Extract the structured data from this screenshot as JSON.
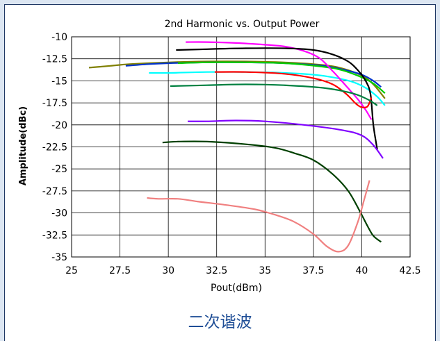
{
  "caption": "二次谐波",
  "colors": {
    "background": "#dce6f2",
    "border": "#1f3864",
    "caption": "#1f4e96"
  },
  "chart_data": {
    "type": "line",
    "title": "2nd Harmonic vs. Output Power",
    "xlabel": "Pout(dBm)",
    "ylabel": "Amplitude(dBc)",
    "xlim": [
      25,
      42.5
    ],
    "ylim": [
      -35,
      -10
    ],
    "xticks": [
      25,
      27.5,
      30,
      32.5,
      35,
      37.5,
      40,
      42.5
    ],
    "xtick_labels": [
      "25",
      "27.5",
      "30",
      "32.5",
      "35",
      "37.5",
      "40",
      "42.5"
    ],
    "yticks": [
      -10,
      -12.5,
      -15,
      -17.5,
      -20,
      -22.5,
      -25,
      -27.5,
      -30,
      -32.5,
      -35
    ],
    "ytick_labels": [
      "-10",
      "-12.5",
      "-15",
      "-17.5",
      "-20",
      "-22.5",
      "-25",
      "-27.5",
      "-30",
      "-32.5",
      "-35"
    ],
    "grid": true,
    "legend": "none",
    "series": [
      {
        "color": "#808000",
        "x": [
          25.9,
          27,
          28,
          30,
          32,
          34,
          36,
          38,
          39,
          40,
          40.6,
          41.2
        ],
        "y": [
          -13.5,
          -13.3,
          -13.1,
          -12.9,
          -12.8,
          -12.8,
          -12.9,
          -13.2,
          -13.6,
          -14.4,
          -15.4,
          -17.0
        ]
      },
      {
        "color": "#0033cc",
        "x": [
          27.8,
          29,
          30,
          32,
          34,
          36,
          38,
          39,
          40,
          40.6,
          41.0
        ],
        "y": [
          -13.3,
          -13.1,
          -13.0,
          -12.9,
          -12.9,
          -13.0,
          -13.3,
          -13.7,
          -14.3,
          -15.0,
          -15.7
        ]
      },
      {
        "color": "#00ffff",
        "x": [
          29.0,
          30,
          32,
          34,
          36,
          37.5,
          38.5,
          39.5,
          40.2,
          40.8,
          41.2
        ],
        "y": [
          -14.1,
          -14.1,
          -14.0,
          -14.0,
          -14.1,
          -14.3,
          -14.6,
          -15.1,
          -15.8,
          -16.8,
          -17.8
        ]
      },
      {
        "color": "#00cc00",
        "x": [
          30.5,
          32,
          34,
          36,
          38,
          39,
          40,
          40.6,
          41.2
        ],
        "y": [
          -13.0,
          -12.9,
          -12.9,
          -13.0,
          -13.4,
          -13.8,
          -14.6,
          -15.3,
          -16.4
        ]
      },
      {
        "color": "#ff00ff",
        "x": [
          30.9,
          32,
          33.5,
          35,
          36,
          37,
          37.8,
          38.5,
          39.2,
          39.8,
          40.2,
          40.5
        ],
        "y": [
          -10.6,
          -10.6,
          -10.7,
          -10.9,
          -11.1,
          -11.6,
          -12.4,
          -13.9,
          -15.6,
          -17.1,
          -18.3,
          -19.4
        ]
      },
      {
        "color": "#000000",
        "x": [
          30.4,
          32,
          34,
          36,
          37.5,
          38.5,
          39.3,
          39.8,
          40.2,
          40.45,
          40.6,
          40.8
        ],
        "y": [
          -11.5,
          -11.4,
          -11.3,
          -11.3,
          -11.5,
          -12.0,
          -12.8,
          -13.8,
          -15.0,
          -16.5,
          -20.0,
          -22.8
        ]
      },
      {
        "color": "#ff0000",
        "x": [
          32.4,
          34,
          36,
          37.5,
          38.5,
          39.2,
          39.7,
          40.0,
          40.3,
          40.5
        ],
        "y": [
          -14.0,
          -14.0,
          -14.2,
          -14.7,
          -15.4,
          -16.5,
          -17.6,
          -18.0,
          -17.9,
          -16.9
        ]
      },
      {
        "color": "#008040",
        "x": [
          30.1,
          32,
          34,
          36,
          38,
          39.5,
          40.3,
          40.8
        ],
        "y": [
          -15.6,
          -15.5,
          -15.4,
          -15.5,
          -15.8,
          -16.4,
          -17.1,
          -17.8
        ]
      },
      {
        "color": "#8000ff",
        "x": [
          31.0,
          32,
          33.5,
          35,
          37,
          39,
          40,
          40.6,
          41.1
        ],
        "y": [
          -19.6,
          -19.6,
          -19.5,
          -19.6,
          -20.0,
          -20.6,
          -21.2,
          -22.3,
          -23.8
        ]
      },
      {
        "color": "#004000",
        "x": [
          29.7,
          30.5,
          32,
          34,
          35.5,
          36.5,
          37.5,
          38.5,
          39.3,
          39.9,
          40.3,
          40.6,
          41.0
        ],
        "y": [
          -22.0,
          -21.9,
          -21.9,
          -22.2,
          -22.6,
          -23.2,
          -24.0,
          -25.6,
          -27.5,
          -29.8,
          -31.5,
          -32.6,
          -33.3
        ]
      },
      {
        "color": "#f08080",
        "x": [
          28.9,
          29.5,
          30.5,
          31.5,
          33,
          34.5,
          35.5,
          36.5,
          37.5,
          38.2,
          38.8,
          39.3,
          39.8,
          40.1,
          40.4
        ],
        "y": [
          -28.3,
          -28.4,
          -28.4,
          -28.7,
          -29.1,
          -29.6,
          -30.2,
          -31.0,
          -32.4,
          -33.8,
          -34.4,
          -33.7,
          -31.0,
          -28.7,
          -26.3
        ]
      }
    ]
  }
}
